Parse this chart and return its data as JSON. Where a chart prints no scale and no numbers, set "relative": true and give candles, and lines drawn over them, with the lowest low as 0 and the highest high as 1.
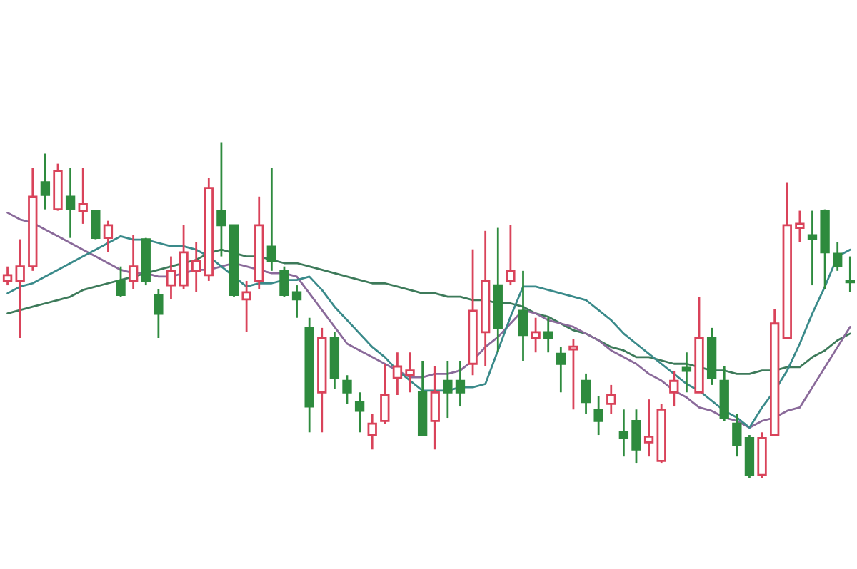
{
  "chart_data": {
    "type": "candlestick",
    "relative": true,
    "categories": [
      null,
      null,
      null,
      null,
      null,
      null,
      null,
      null,
      null,
      null,
      null,
      null,
      null,
      null,
      null,
      null,
      null,
      null,
      null,
      null,
      null,
      null,
      null,
      null,
      null,
      null,
      null,
      null,
      null,
      null,
      null,
      null,
      null,
      null,
      null,
      null,
      null,
      null,
      null,
      null,
      null,
      null,
      null,
      null,
      null,
      null,
      null,
      null,
      null,
      null,
      null,
      null,
      null,
      null,
      null,
      null,
      null,
      null,
      null,
      null,
      null,
      null,
      null,
      null,
      null,
      null,
      null,
      null
    ],
    "ohlc": [
      [
        0.587,
        0.63,
        0.574,
        0.604
      ],
      [
        0.587,
        0.711,
        0.417,
        0.63
      ],
      [
        0.63,
        0.923,
        0.617,
        0.838
      ],
      [
        0.881,
        0.966,
        0.8,
        0.843
      ],
      [
        0.8,
        0.936,
        0.796,
        0.915
      ],
      [
        0.838,
        0.923,
        0.715,
        0.8
      ],
      [
        0.796,
        0.923,
        0.757,
        0.817
      ],
      [
        0.796,
        0.796,
        0.711,
        0.715
      ],
      [
        0.715,
        0.766,
        0.672,
        0.753
      ],
      [
        0.587,
        0.63,
        0.54,
        0.545
      ],
      [
        0.587,
        0.723,
        0.562,
        0.63
      ],
      [
        0.711,
        0.715,
        0.574,
        0.587
      ],
      [
        0.545,
        0.562,
        0.417,
        0.489
      ],
      [
        0.574,
        0.66,
        0.532,
        0.617
      ],
      [
        0.574,
        0.753,
        0.562,
        0.672
      ],
      [
        0.617,
        0.702,
        0.553,
        0.647
      ],
      [
        0.604,
        0.894,
        0.587,
        0.864
      ],
      [
        0.796,
        1.0,
        0.66,
        0.753
      ],
      [
        0.753,
        0.753,
        0.54,
        0.545
      ],
      [
        0.532,
        0.587,
        0.434,
        0.553
      ],
      [
        0.587,
        0.838,
        0.562,
        0.753
      ],
      [
        0.689,
        0.923,
        0.617,
        0.647
      ],
      [
        0.617,
        0.63,
        0.54,
        0.545
      ],
      [
        0.553,
        0.574,
        0.477,
        0.532
      ],
      [
        0.447,
        0.477,
        0.136,
        0.213
      ],
      [
        0.255,
        0.447,
        0.136,
        0.417
      ],
      [
        0.417,
        0.434,
        0.264,
        0.298
      ],
      [
        0.289,
        0.306,
        0.221,
        0.255
      ],
      [
        0.226,
        0.255,
        0.136,
        0.2
      ],
      [
        0.128,
        0.191,
        0.085,
        0.162
      ],
      [
        0.17,
        0.34,
        0.162,
        0.247
      ],
      [
        0.298,
        0.374,
        0.247,
        0.332
      ],
      [
        0.306,
        0.374,
        0.255,
        0.32
      ],
      [
        0.255,
        0.349,
        0.128,
        0.128
      ],
      [
        0.17,
        0.332,
        0.085,
        0.255
      ],
      [
        0.289,
        0.349,
        0.179,
        0.255
      ],
      [
        0.289,
        0.349,
        0.213,
        0.255
      ],
      [
        0.34,
        0.681,
        0.306,
        0.498
      ],
      [
        0.434,
        0.736,
        0.332,
        0.587
      ],
      [
        0.574,
        0.745,
        0.374,
        0.447
      ],
      [
        0.587,
        0.753,
        0.574,
        0.617
      ],
      [
        0.498,
        0.617,
        0.349,
        0.426
      ],
      [
        0.417,
        0.477,
        0.374,
        0.434
      ],
      [
        0.434,
        0.477,
        0.374,
        0.417
      ],
      [
        0.37,
        0.391,
        0.255,
        0.34
      ],
      [
        0.383,
        0.413,
        0.204,
        0.391
      ],
      [
        0.289,
        0.311,
        0.191,
        0.226
      ],
      [
        0.204,
        0.243,
        0.128,
        0.17
      ],
      [
        0.221,
        0.277,
        0.191,
        0.247
      ],
      [
        0.136,
        0.204,
        0.064,
        0.119
      ],
      [
        0.17,
        0.204,
        0.043,
        0.085
      ],
      [
        0.106,
        0.234,
        0.064,
        0.123
      ],
      [
        0.051,
        0.221,
        0.043,
        0.204
      ],
      [
        0.255,
        0.319,
        0.213,
        0.289
      ],
      [
        0.328,
        0.374,
        0.255,
        0.319
      ],
      [
        0.255,
        0.54,
        0.255,
        0.417
      ],
      [
        0.417,
        0.447,
        0.277,
        0.298
      ],
      [
        0.289,
        0.332,
        0.17,
        0.179
      ],
      [
        0.162,
        0.191,
        0.064,
        0.098
      ],
      [
        0.119,
        0.128,
        0.0,
        0.009
      ],
      [
        0.009,
        0.136,
        0.0,
        0.119
      ],
      [
        0.128,
        0.502,
        0.128,
        0.46
      ],
      [
        0.417,
        0.881,
        0.417,
        0.753
      ],
      [
        0.745,
        0.796,
        0.702,
        0.757
      ],
      [
        0.723,
        0.796,
        0.574,
        0.711
      ],
      [
        0.796,
        0.8,
        0.562,
        0.672
      ],
      [
        0.668,
        0.702,
        0.617,
        0.63
      ],
      [
        0.587,
        0.66,
        0.553,
        0.583
      ]
    ],
    "series": [
      {
        "type": "line",
        "color": "#3d7a5a",
        "values": [
          0.49,
          0.5,
          0.51,
          0.52,
          0.53,
          0.54,
          0.56,
          0.57,
          0.58,
          0.59,
          0.6,
          0.61,
          0.62,
          0.63,
          0.64,
          0.65,
          0.67,
          0.68,
          0.67,
          0.66,
          0.66,
          0.65,
          0.64,
          0.64,
          0.63,
          0.62,
          0.61,
          0.6,
          0.59,
          0.58,
          0.58,
          0.57,
          0.56,
          0.55,
          0.55,
          0.54,
          0.54,
          0.53,
          0.53,
          0.52,
          0.52,
          0.51,
          0.49,
          0.48,
          0.46,
          0.44,
          0.43,
          0.41,
          0.39,
          0.38,
          0.36,
          0.36,
          0.35,
          0.34,
          0.34,
          0.33,
          0.32,
          0.32,
          0.31,
          0.31,
          0.32,
          0.32,
          0.33,
          0.33,
          0.36,
          0.38,
          0.41,
          0.43
        ]
      },
      {
        "type": "line",
        "color": "#8a6a9a",
        "values": [
          0.79,
          0.77,
          0.76,
          0.74,
          0.72,
          0.7,
          0.68,
          0.66,
          0.64,
          0.62,
          0.61,
          0.61,
          0.6,
          0.6,
          0.61,
          0.62,
          0.62,
          0.63,
          0.64,
          0.63,
          0.62,
          0.61,
          0.61,
          0.6,
          0.55,
          0.5,
          0.45,
          0.4,
          0.38,
          0.36,
          0.34,
          0.32,
          0.3,
          0.3,
          0.31,
          0.31,
          0.32,
          0.35,
          0.39,
          0.42,
          0.46,
          0.5,
          0.49,
          0.47,
          0.46,
          0.45,
          0.43,
          0.41,
          0.38,
          0.36,
          0.34,
          0.31,
          0.29,
          0.26,
          0.24,
          0.21,
          0.2,
          0.18,
          0.17,
          0.15,
          0.17,
          0.18,
          0.2,
          0.21,
          0.27,
          0.33,
          0.39,
          0.45
        ]
      },
      {
        "type": "line",
        "color": "#3a8a8a",
        "values": [
          0.55,
          0.57,
          0.58,
          0.6,
          0.62,
          0.64,
          0.66,
          0.68,
          0.7,
          0.72,
          0.71,
          0.71,
          0.7,
          0.69,
          0.69,
          0.68,
          0.66,
          0.63,
          0.6,
          0.57,
          0.58,
          0.58,
          0.59,
          0.59,
          0.6,
          0.56,
          0.51,
          0.47,
          0.43,
          0.39,
          0.36,
          0.32,
          0.29,
          0.26,
          0.26,
          0.26,
          0.27,
          0.27,
          0.28,
          0.38,
          0.48,
          0.57,
          0.57,
          0.56,
          0.55,
          0.54,
          0.53,
          0.5,
          0.47,
          0.43,
          0.4,
          0.37,
          0.34,
          0.31,
          0.28,
          0.26,
          0.23,
          0.2,
          0.18,
          0.15,
          0.21,
          0.26,
          0.32,
          0.4,
          0.49,
          0.57,
          0.66,
          0.68
        ]
      }
    ]
  }
}
